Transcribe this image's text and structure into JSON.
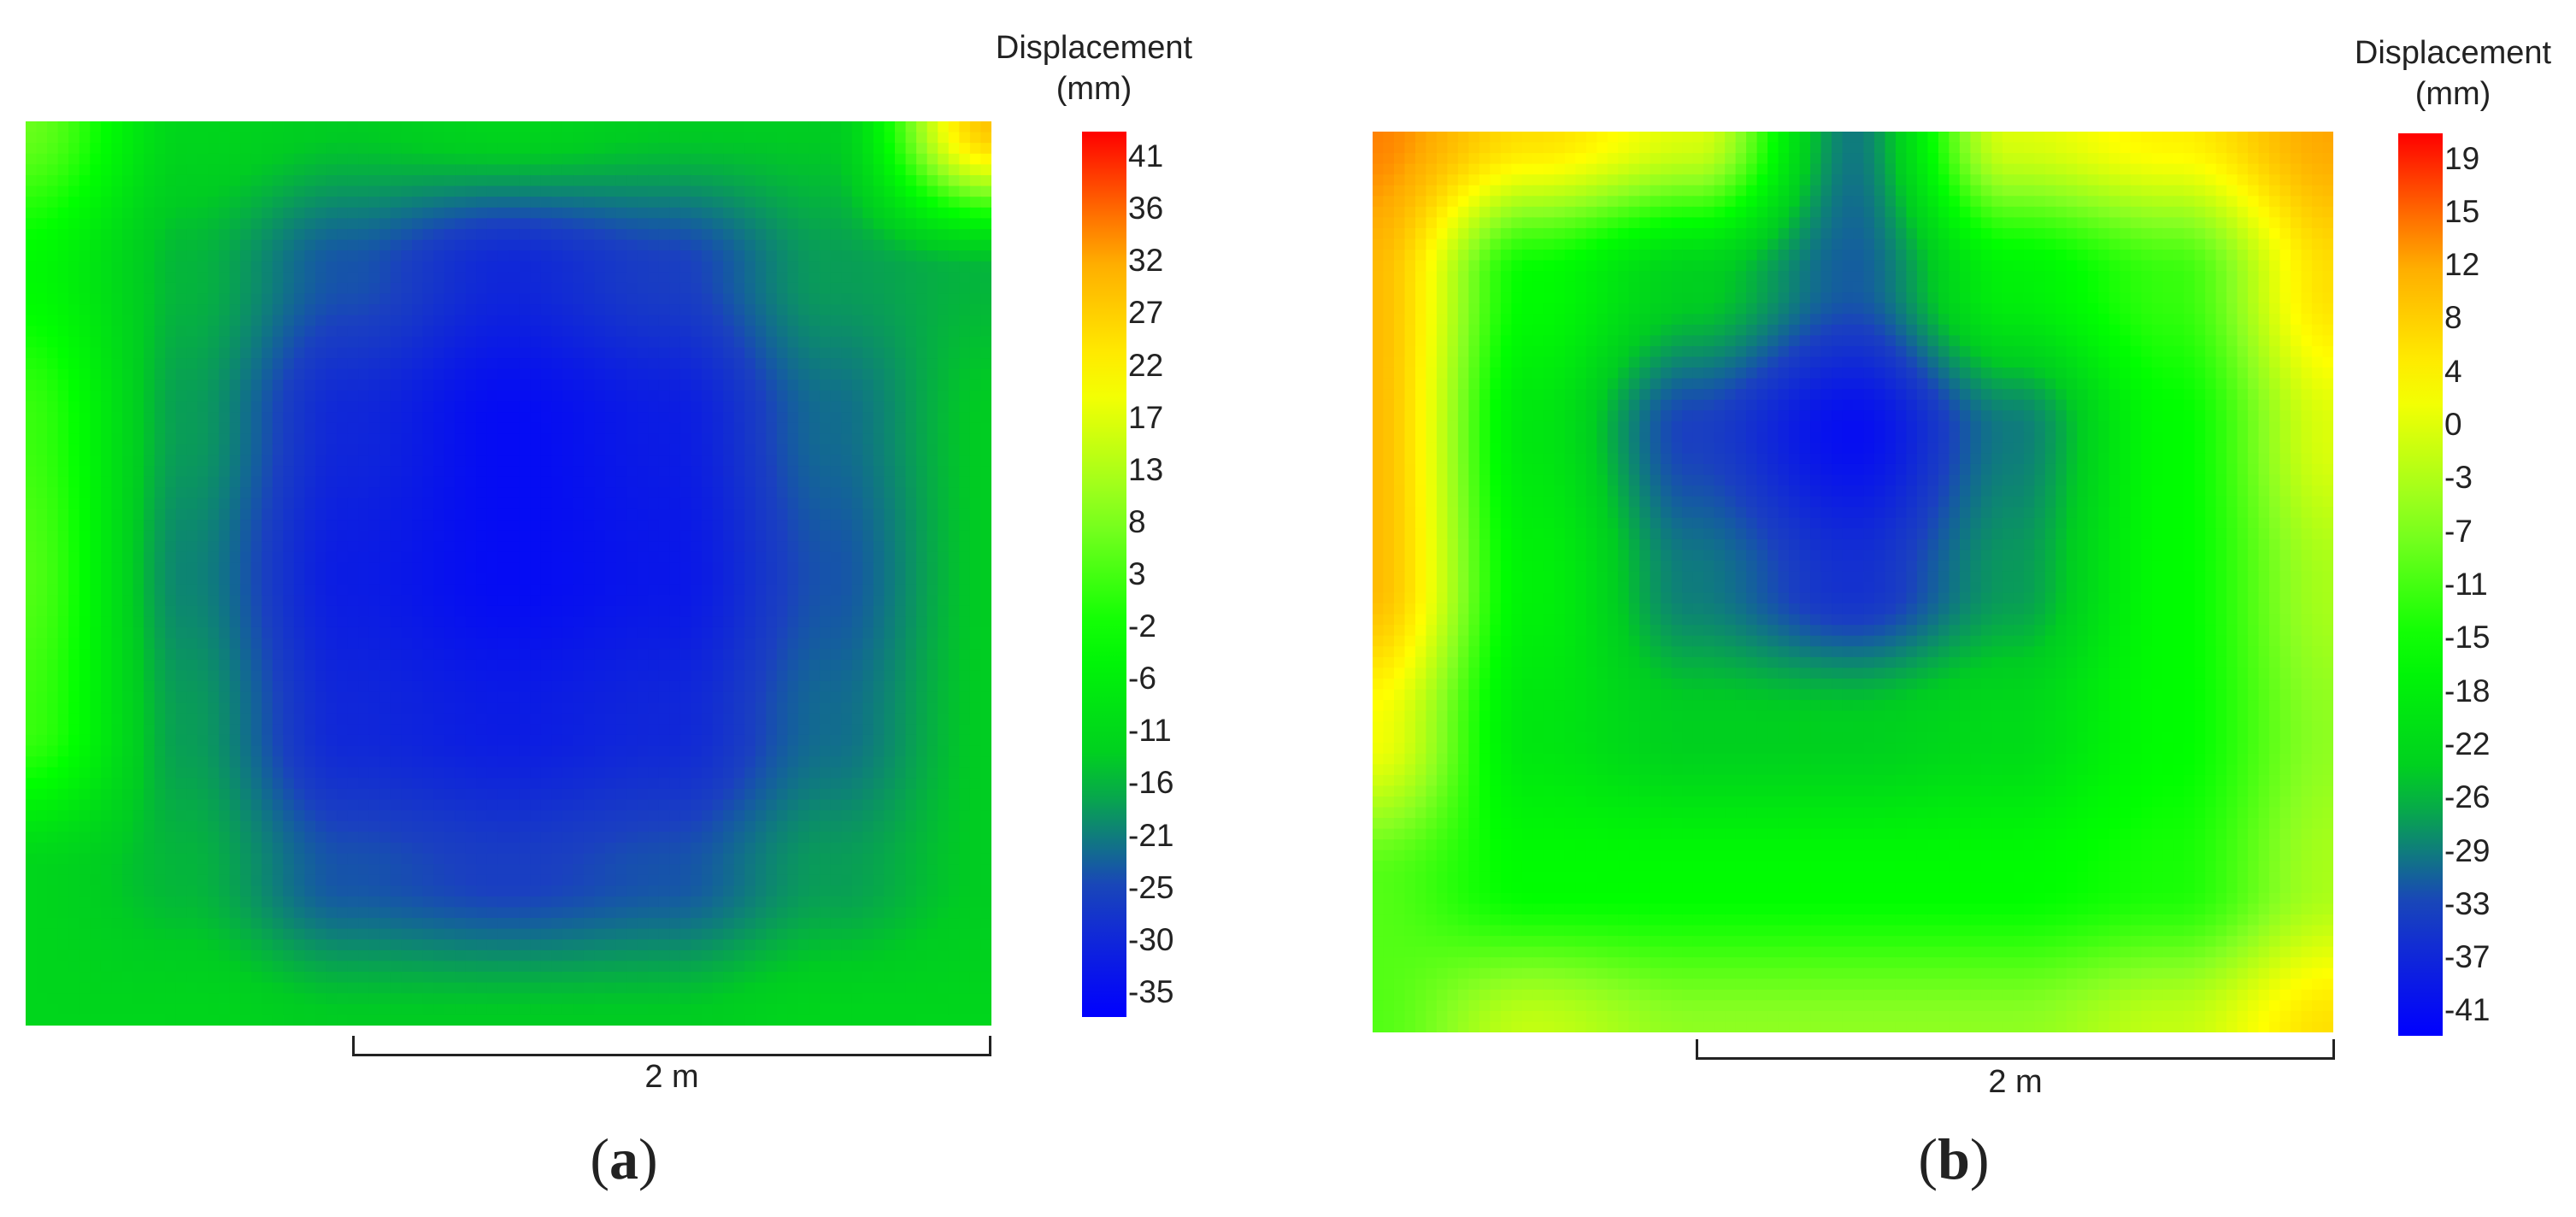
{
  "chart_data": [
    {
      "type": "heatmap",
      "panel_label": "(a)",
      "colorbar_title_line1": "Displacement",
      "colorbar_title_line2": "(mm)",
      "colorbar_ticks": [
        41,
        36,
        32,
        27,
        22,
        17,
        13,
        8,
        3,
        -2,
        -6,
        -11,
        -16,
        -21,
        -25,
        -30,
        -35
      ],
      "colorbar_range": [
        -37,
        43
      ],
      "colormap": [
        "#0000ff",
        "#1a40c0",
        "#00cc22",
        "#00ff00",
        "#88ff22",
        "#ffff00",
        "#ffaa00",
        "#ff0000"
      ],
      "scale_bar_label": "2 m",
      "field": {
        "description_grid": "7x7 displacement samples, rows top-to-bottom, columns left-to-right",
        "rows": [
          [
            6,
            -12,
            -14,
            -12,
            -14,
            -14,
            28
          ],
          [
            -4,
            -16,
            -24,
            -30,
            -26,
            -18,
            -16
          ],
          [
            2,
            -18,
            -30,
            -35,
            -32,
            -22,
            -14
          ],
          [
            4,
            -20,
            -32,
            -35,
            -33,
            -24,
            -14
          ],
          [
            2,
            -18,
            -30,
            -32,
            -30,
            -22,
            -14
          ],
          [
            -12,
            -16,
            -24,
            -26,
            -24,
            -18,
            -14
          ],
          [
            -12,
            -12,
            -14,
            -14,
            -14,
            -12,
            -12
          ]
        ]
      }
    },
    {
      "type": "heatmap",
      "panel_label": "(b)",
      "colorbar_title_line1": "Displacement",
      "colorbar_title_line2": "(mm)",
      "colorbar_ticks": [
        19,
        15,
        12,
        8,
        4,
        0,
        -3,
        -7,
        -11,
        -15,
        -18,
        -22,
        -26,
        -29,
        -33,
        -37,
        -41
      ],
      "colorbar_range": [
        -43,
        21
      ],
      "colormap": [
        "#0000ff",
        "#1a40c0",
        "#00cc22",
        "#00ff00",
        "#88ff22",
        "#ffff00",
        "#ffaa00",
        "#ff0000"
      ],
      "scale_bar_label": "2 m",
      "field": {
        "description_grid": "7x7 displacement samples, rows top-to-bottom, columns left-to-right",
        "rows": [
          [
            14,
            6,
            0,
            -30,
            0,
            4,
            12
          ],
          [
            10,
            -16,
            -24,
            -32,
            -18,
            -12,
            6
          ],
          [
            10,
            -20,
            -34,
            -41,
            -30,
            -16,
            0
          ],
          [
            10,
            -18,
            -30,
            -36,
            -28,
            -16,
            -4
          ],
          [
            2,
            -20,
            -24,
            -24,
            -22,
            -16,
            -6
          ],
          [
            -10,
            -16,
            -16,
            -16,
            -16,
            -14,
            -4
          ],
          [
            -10,
            -2,
            -6,
            -6,
            -6,
            -2,
            6
          ]
        ]
      }
    }
  ]
}
